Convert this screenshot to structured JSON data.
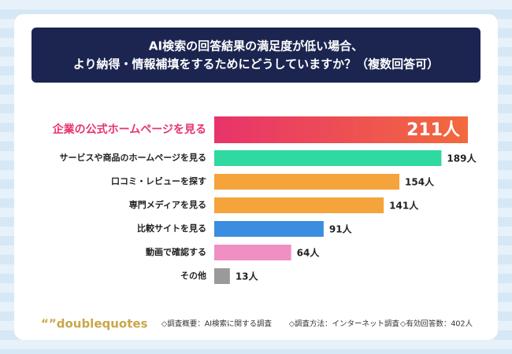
{
  "chart_data": {
    "type": "bar",
    "title": [
      "AI検索の回答結果の満足度が低い場合、",
      "より納得・情報補填をするためにどうしていますか？（複数回答可）"
    ],
    "categories": [
      "企業の公式ホームページを見る",
      "サービスや商品のホームページを見る",
      "口コミ・レビューを探す",
      "専門メディアを見る",
      "比較サイトを見る",
      "動画で確認する",
      "その他"
    ],
    "values": [
      211,
      189,
      154,
      141,
      91,
      64,
      13
    ],
    "value_labels": [
      "211人",
      "189人",
      "154人",
      "141人",
      "91人",
      "64人",
      "13人"
    ],
    "colors": [
      "#e8336b",
      "#2fd9a1",
      "#f5a33b",
      "#f5a33b",
      "#3a8ddf",
      "#ef8fc2",
      "#9a9a9a"
    ],
    "logo": "“”doublequotes",
    "notes": [
      "◇調査概要：AI検索に関する調査",
      "◇調査方法：インターネット調査",
      "◇有効回答数：402人"
    ]
  }
}
